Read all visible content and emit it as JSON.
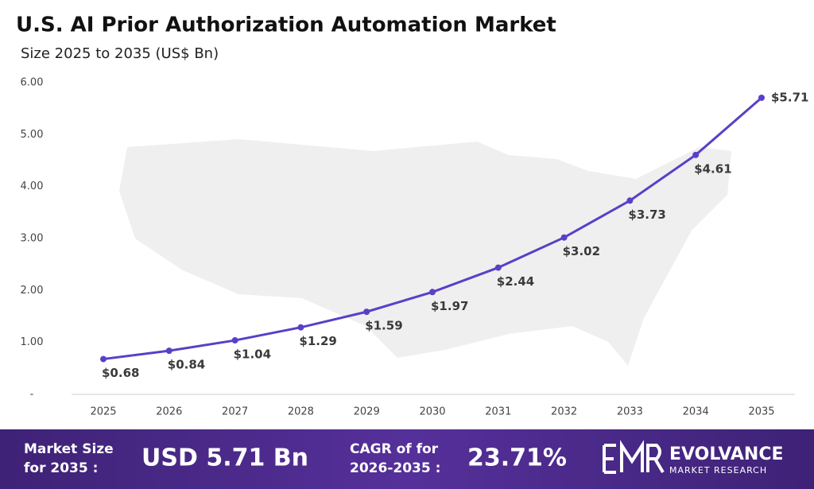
{
  "chart_data": {
    "type": "line",
    "title": "U.S. AI Prior Authorization Automation Market",
    "subtitle": "Size 2025 to 2035 (US$ Bn)",
    "categories": [
      "2025",
      "2026",
      "2027",
      "2028",
      "2029",
      "2030",
      "2031",
      "2032",
      "2033",
      "2034",
      "2035"
    ],
    "series": [
      {
        "color": "#5a3fc8",
        "values": [
          0.68,
          0.84,
          1.04,
          1.29,
          1.59,
          1.97,
          2.44,
          3.02,
          3.73,
          4.61,
          5.71
        ],
        "value_labels": [
          "$0.68",
          "$0.84",
          "$1.04",
          "$1.29",
          "$1.59",
          "$1.97",
          "$2.44",
          "$3.02",
          "$3.73",
          "$4.61",
          "$5.71"
        ]
      }
    ],
    "ylim": [
      0,
      6
    ],
    "yticks": [
      {
        "value": 0,
        "label": "-"
      },
      {
        "value": 1,
        "label": "1.00"
      },
      {
        "value": 2,
        "label": "2.00"
      },
      {
        "value": 3,
        "label": "3.00"
      },
      {
        "value": 4,
        "label": "4.00"
      },
      {
        "value": 5,
        "label": "5.00"
      },
      {
        "value": 6,
        "label": "6.00"
      }
    ],
    "footer": {
      "market_size_label": [
        "Market Size",
        "for 2035 :"
      ],
      "market_size_value": "USD 5.71 Bn",
      "cagr_label": [
        "CAGR of for",
        "2026-2035 :"
      ],
      "cagr_value": "23.71%",
      "brand": "EVOLVANCE",
      "brand_sub": "MARKET RESEARCH"
    }
  }
}
